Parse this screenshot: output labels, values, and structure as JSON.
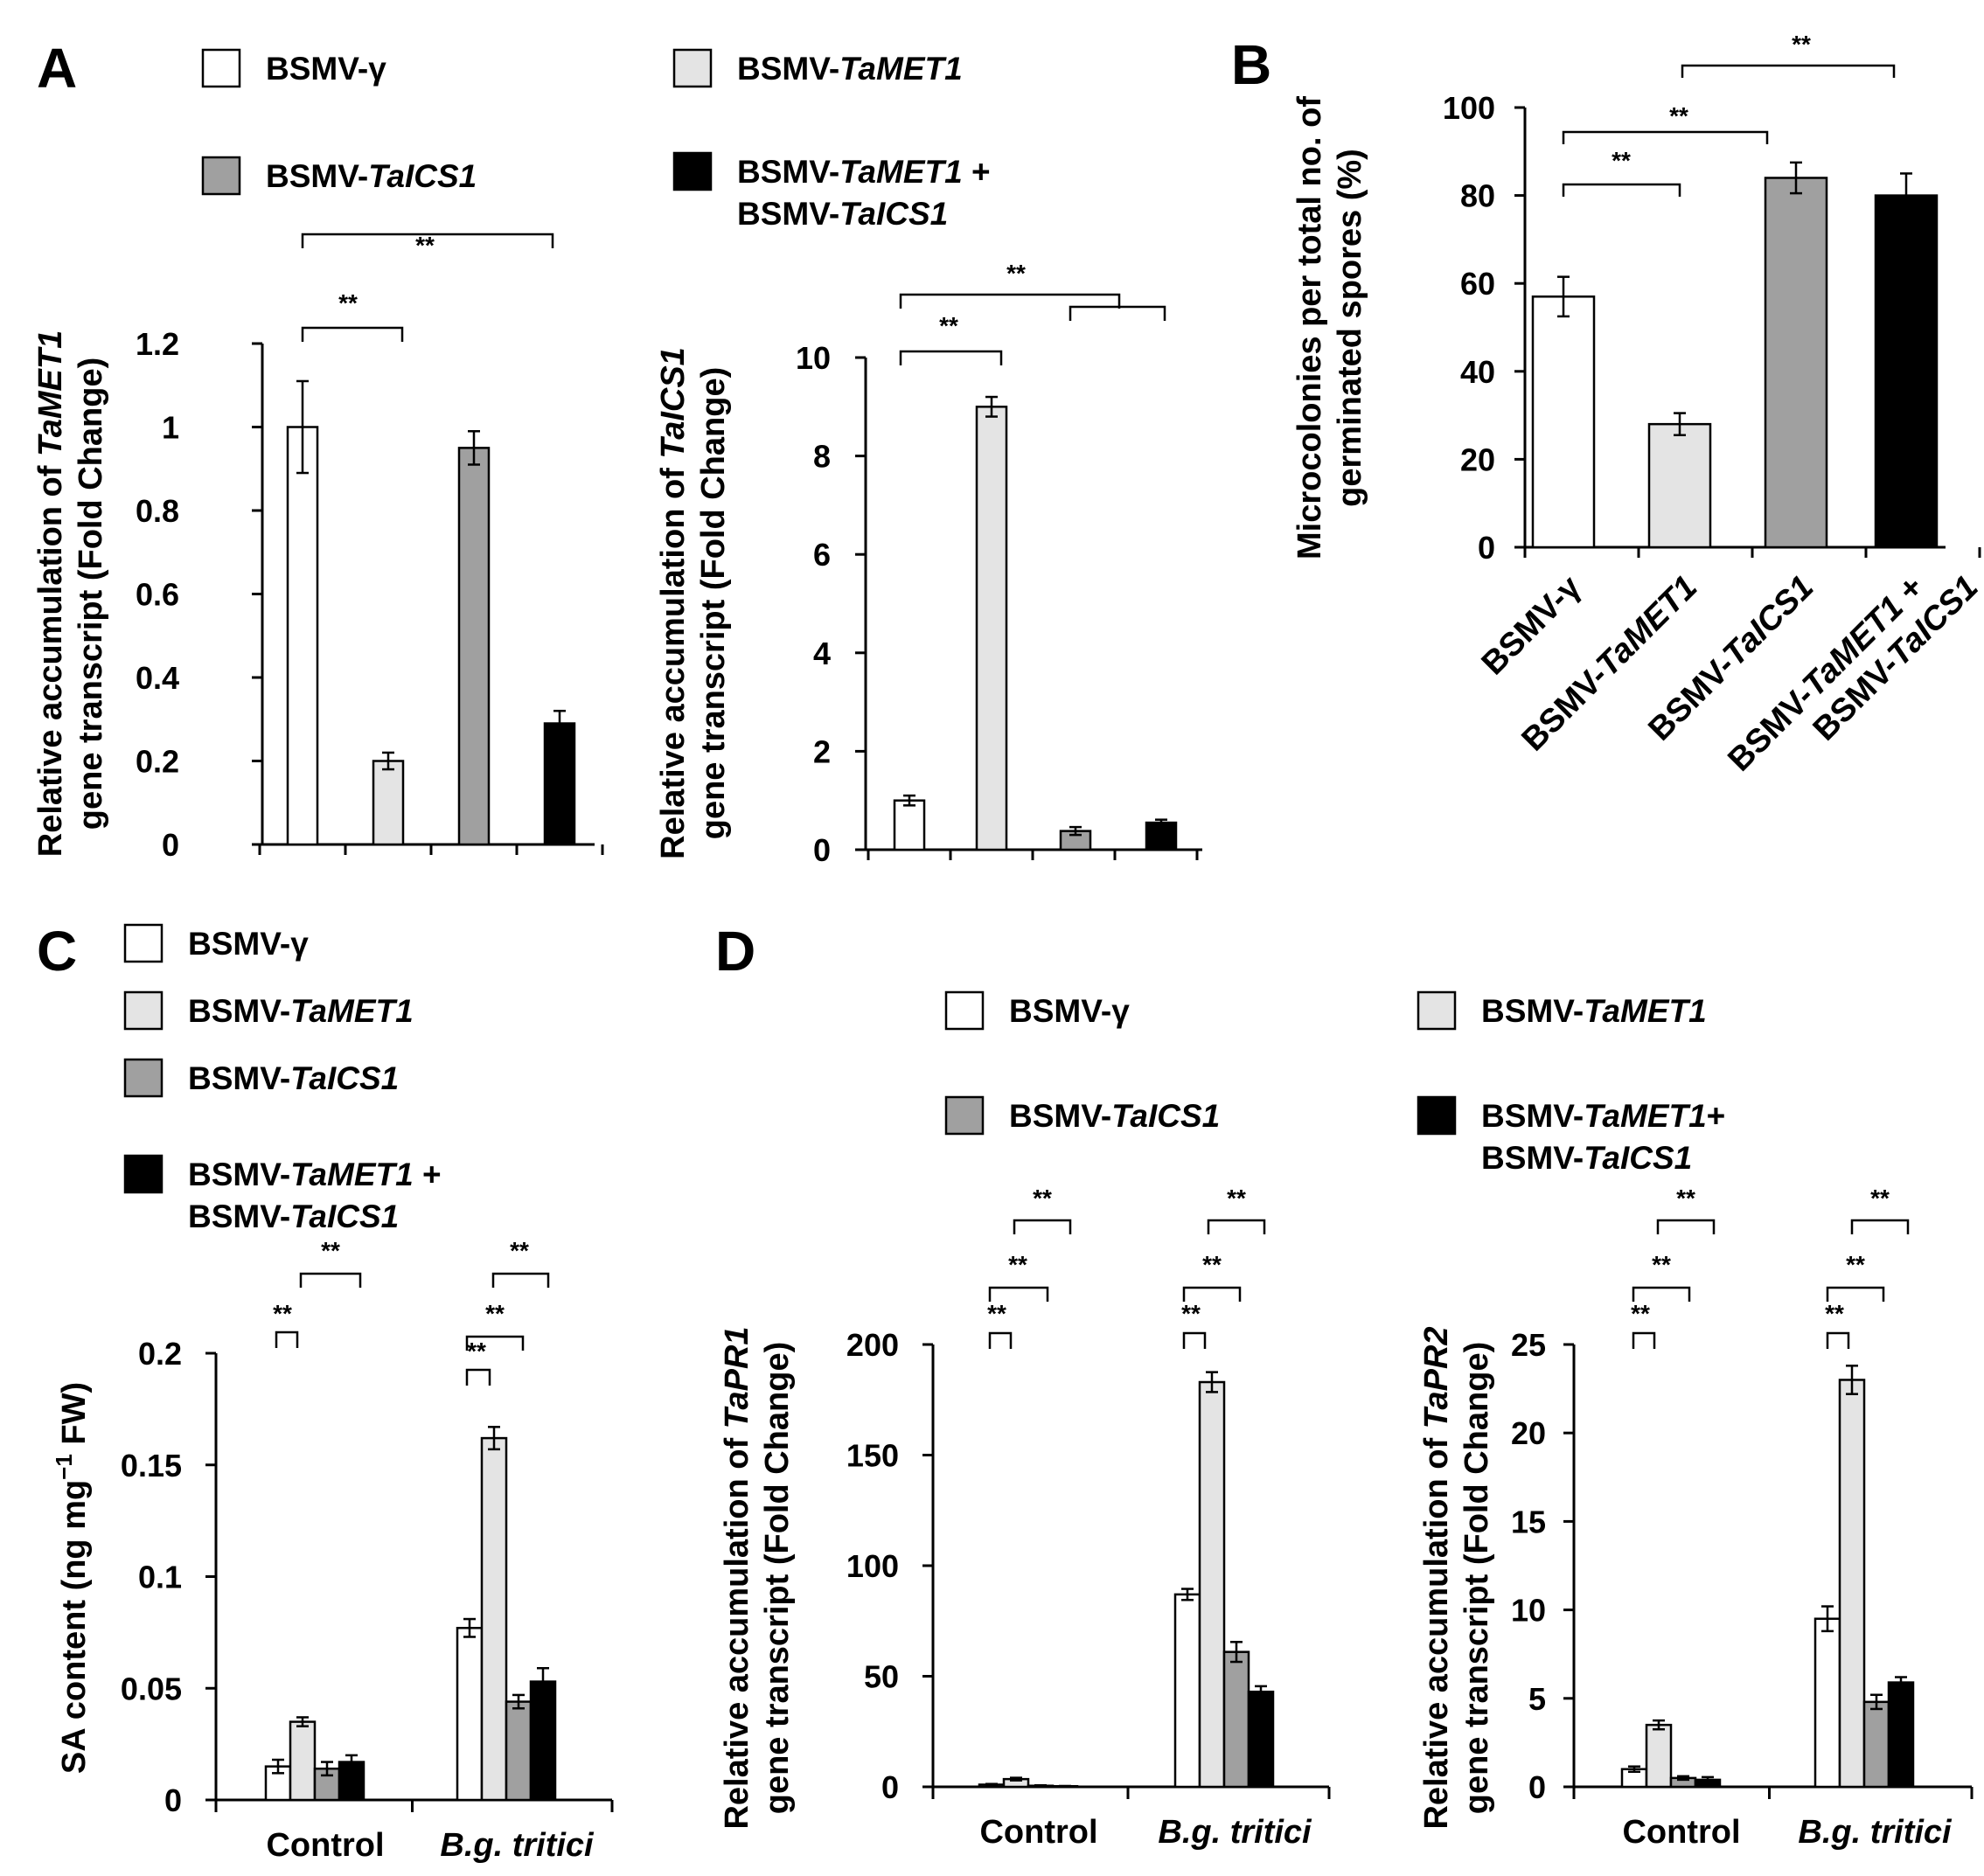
{
  "panels": {
    "A": "A",
    "B": "B",
    "C": "C",
    "D": "D"
  },
  "colors": {
    "vector": "#ffffff",
    "met1": "#e4e4e4",
    "ics1": "#a0a0a0",
    "double": "#000000"
  },
  "legend_A": [
    {
      "prefix": "BSMV-",
      "gene": "γ",
      "italic": false,
      "color": "vector"
    },
    {
      "prefix": "BSMV-",
      "gene": "TaMET1",
      "italic": true,
      "color": "met1"
    },
    {
      "prefix": "BSMV-",
      "gene": "TaICS1",
      "italic": true,
      "color": "ics1"
    },
    {
      "prefix": "BSMV-",
      "gene": "TaMET1",
      "italic": true,
      "suffix": " +",
      "line2_prefix": "BSMV-",
      "line2_gene": "TaICS1",
      "color": "double"
    }
  ],
  "legend_C": [
    {
      "prefix": "BSMV-",
      "gene": "γ",
      "italic": false,
      "color": "vector"
    },
    {
      "prefix": "BSMV-",
      "gene": "TaMET1",
      "italic": true,
      "color": "met1"
    },
    {
      "prefix": "BSMV-",
      "gene": "TaICS1",
      "italic": true,
      "color": "ics1"
    },
    {
      "prefix": "BSMV-",
      "gene": "TaMET1",
      "italic": true,
      "suffix": " +",
      "line2_prefix": "BSMV-",
      "line2_gene": "TaICS1",
      "color": "double"
    }
  ],
  "legend_D": [
    {
      "prefix": "BSMV-",
      "gene": "γ",
      "italic": false,
      "color": "vector"
    },
    {
      "prefix": "BSMV-",
      "gene": "TaMET1",
      "italic": true,
      "color": "met1"
    },
    {
      "prefix": "BSMV-",
      "gene": "TaICS1",
      "italic": true,
      "color": "ics1"
    },
    {
      "prefix": "BSMV-",
      "gene": "TaMET1",
      "italic": true,
      "suffix": "+",
      "line2_prefix": "BSMV-",
      "line2_gene": "TaICS1",
      "color": "double"
    }
  ],
  "chart_data": [
    {
      "id": "A1",
      "panel": "A",
      "type": "bar",
      "ylabel": {
        "line1_pre": "Relative accumulation of ",
        "line1_gene": "TaMET1",
        "line2": "gene transcript  (Fold Change)"
      },
      "ylim": [
        0,
        1.2
      ],
      "yticks": [
        "0",
        "0.2",
        "0.4",
        "0.6",
        "0.8",
        "1",
        "1.2"
      ],
      "categories": [
        "BSMV-γ",
        "BSMV-TaMET1",
        "BSMV-TaICS1",
        "BSMV-TaMET1 + BSMV-TaICS1"
      ],
      "values": [
        1.0,
        0.2,
        0.95,
        0.29
      ],
      "errors": [
        0.11,
        0.02,
        0.04,
        0.03
      ],
      "significance": [
        "**",
        "**"
      ]
    },
    {
      "id": "A2",
      "panel": "A",
      "type": "bar",
      "ylabel": {
        "line1_pre": "Relative accumulation of ",
        "line1_gene": "TaICS1",
        "line2": "gene transcript  (Fold Change)"
      },
      "ylim": [
        0,
        10
      ],
      "yticks": [
        "0",
        "2",
        "4",
        "6",
        "8",
        "10"
      ],
      "categories": [
        "BSMV-γ",
        "BSMV-TaMET1",
        "BSMV-TaICS1",
        "BSMV-TaMET1 + BSMV-TaICS1"
      ],
      "values": [
        1.0,
        9.0,
        0.38,
        0.55
      ],
      "errors": [
        0.1,
        0.2,
        0.08,
        0.06
      ],
      "significance": [
        "**",
        "**"
      ]
    },
    {
      "id": "B",
      "panel": "B",
      "type": "bar",
      "ylabel": {
        "line1": "Microcolonies per total no. of",
        "line2": "germinated spores (%)"
      },
      "ylim": [
        0,
        100
      ],
      "yticks": [
        "0",
        "20",
        "40",
        "60",
        "80",
        "100"
      ],
      "categories": [
        "BSMV-γ",
        "BSMV-TaMET1",
        "BSMV-TaICS1",
        "BSMV-TaMET1 + BSMV-TaICS1"
      ],
      "xticklabels": [
        {
          "pre": "BSMV-",
          "gene": "γ",
          "italic": false
        },
        {
          "pre": "BSMV-",
          "gene": "TaMET1",
          "italic": true
        },
        {
          "pre": "BSMV-",
          "gene": "TaICS1",
          "italic": true
        },
        {
          "pre": "BSMV-",
          "gene": "TaMET1",
          "italic": true,
          "suffix": " +",
          "line2_pre": "BSMV-",
          "line2_gene": "TaICS1"
        }
      ],
      "values": [
        57,
        28,
        84,
        80
      ],
      "errors": [
        4.5,
        2.5,
        3.5,
        5.0
      ],
      "significance": [
        "**",
        "**",
        "**"
      ]
    },
    {
      "id": "C",
      "panel": "C",
      "type": "bar",
      "ylabel": {
        "pre": "SA content (ng mg",
        "sup": "−1",
        "post": " FW)"
      },
      "ylim": [
        0,
        0.2
      ],
      "yticks": [
        "0",
        "0.05",
        "0.1",
        "0.15",
        "0.2"
      ],
      "categories": [
        "Control",
        "B.g. tritici"
      ],
      "cat_italic": [
        false,
        true
      ],
      "series": [
        {
          "name": "BSMV-γ",
          "values": [
            0.015,
            0.077
          ],
          "errors": [
            0.003,
            0.004
          ]
        },
        {
          "name": "BSMV-TaMET1",
          "values": [
            0.035,
            0.162
          ],
          "errors": [
            0.002,
            0.005
          ]
        },
        {
          "name": "BSMV-TaICS1",
          "values": [
            0.014,
            0.044
          ],
          "errors": [
            0.003,
            0.003
          ]
        },
        {
          "name": "BSMV-TaMET1 + BSMV-TaICS1",
          "values": [
            0.017,
            0.053
          ],
          "errors": [
            0.003,
            0.006
          ]
        }
      ],
      "significance": [
        "**",
        "**",
        "**",
        "**",
        "**"
      ]
    },
    {
      "id": "D1",
      "panel": "D",
      "type": "bar",
      "ylabel": {
        "line1_pre": "Relative accumulation of ",
        "line1_gene": "TaPR1",
        "line2": "gene transcript  (Fold Change)"
      },
      "ylim": [
        0,
        200
      ],
      "yticks": [
        "0",
        "50",
        "100",
        "150",
        "200"
      ],
      "categories": [
        "Control",
        "B.g. tritici"
      ],
      "cat_italic": [
        false,
        true
      ],
      "series": [
        {
          "name": "BSMV-γ",
          "values": [
            1.0,
            87
          ],
          "errors": [
            0.3,
            2.5
          ]
        },
        {
          "name": "BSMV-TaMET1",
          "values": [
            3.5,
            183
          ],
          "errors": [
            0.6,
            4.5
          ]
        },
        {
          "name": "BSMV-TaICS1",
          "values": [
            0.5,
            61
          ],
          "errors": [
            0.2,
            4.5
          ]
        },
        {
          "name": "BSMV-TaMET1 + BSMV-TaICS1",
          "values": [
            0.3,
            43
          ],
          "errors": [
            0.1,
            2.5
          ]
        }
      ],
      "significance": [
        "**",
        "**",
        "**",
        "**",
        "**",
        "**"
      ]
    },
    {
      "id": "D2",
      "panel": "D",
      "type": "bar",
      "ylabel": {
        "line1_pre": "Relative accumulation of ",
        "line1_gene": "TaPR2",
        "line2": "gene transcript  (Fold Change)"
      },
      "ylim": [
        0,
        25
      ],
      "yticks": [
        "0",
        "5",
        "10",
        "15",
        "20",
        "25"
      ],
      "categories": [
        "Control",
        "B.g. tritici"
      ],
      "cat_italic": [
        false,
        true
      ],
      "series": [
        {
          "name": "BSMV-γ",
          "values": [
            1.0,
            9.5
          ],
          "errors": [
            0.15,
            0.7
          ]
        },
        {
          "name": "BSMV-TaMET1",
          "values": [
            3.5,
            23.0
          ],
          "errors": [
            0.25,
            0.8
          ]
        },
        {
          "name": "BSMV-TaICS1",
          "values": [
            0.5,
            4.8
          ],
          "errors": [
            0.1,
            0.4
          ]
        },
        {
          "name": "BSMV-TaMET1 + BSMV-TaICS1",
          "values": [
            0.4,
            5.9
          ],
          "errors": [
            0.15,
            0.3
          ]
        }
      ],
      "significance": [
        "**",
        "**",
        "**",
        "**",
        "**",
        "**"
      ]
    }
  ]
}
